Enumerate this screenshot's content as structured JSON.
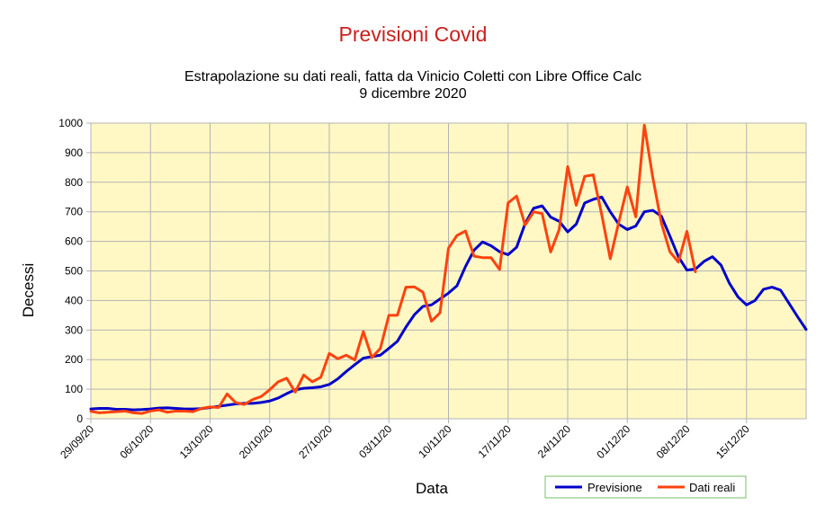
{
  "chart_data": {
    "type": "line",
    "title": "Previsioni Covid",
    "subtitle_lines": [
      "Estrapolazione su dati reali, fatta da Vinicio Coletti con Libre Office Calc",
      "9 dicembre 2020"
    ],
    "xlabel": "Data",
    "ylabel": "Decessi",
    "ylim": [
      0,
      1000
    ],
    "yticks": [
      0,
      100,
      200,
      300,
      400,
      500,
      600,
      700,
      800,
      900,
      1000
    ],
    "x_start": "2020-09-29",
    "x_end": "2020-12-22",
    "xtick_labels": [
      "29/09/20",
      "06/10/20",
      "13/10/20",
      "20/10/20",
      "27/10/20",
      "03/11/20",
      "10/11/20",
      "17/11/20",
      "24/11/20",
      "01/12/20",
      "08/12/20",
      "15/12/20"
    ],
    "grid": true,
    "plot_background": "#fff8c4",
    "legend_position": "bottom-right",
    "series": [
      {
        "name": "Previsione",
        "color": "#0000cc",
        "values": [
          33,
          35,
          35,
          32,
          32,
          30,
          31,
          33,
          36,
          37,
          35,
          33,
          33,
          34,
          38,
          42,
          46,
          50,
          52,
          52,
          55,
          60,
          70,
          85,
          98,
          103,
          105,
          108,
          116,
          135,
          160,
          183,
          205,
          210,
          215,
          238,
          262,
          310,
          352,
          380,
          385,
          405,
          425,
          450,
          515,
          570,
          598,
          585,
          565,
          555,
          580,
          660,
          712,
          720,
          682,
          668,
          632,
          658,
          730,
          742,
          750,
          700,
          658,
          640,
          652,
          700,
          705,
          685,
          618,
          548,
          503,
          506,
          532,
          548,
          520,
          458,
          412,
          385,
          400,
          438,
          445,
          435,
          390,
          345,
          302
        ]
      },
      {
        "name": "Dati reali",
        "color": "#ff420e",
        "values": [
          25,
          20,
          22,
          24,
          26,
          20,
          18,
          26,
          30,
          22,
          26,
          26,
          24,
          35,
          40,
          38,
          84,
          55,
          48,
          65,
          75,
          98,
          125,
          137,
          90,
          148,
          125,
          140,
          221,
          203,
          215,
          199,
          295,
          207,
          238,
          350,
          350,
          445,
          446,
          428,
          330,
          358,
          577,
          620,
          635,
          550,
          545,
          545,
          505,
          730,
          753,
          655,
          700,
          694,
          564,
          640,
          853,
          722,
          820,
          825,
          690,
          541,
          665,
          784,
          683,
          993,
          815,
          662,
          565,
          530,
          634,
          497
        ]
      }
    ]
  }
}
